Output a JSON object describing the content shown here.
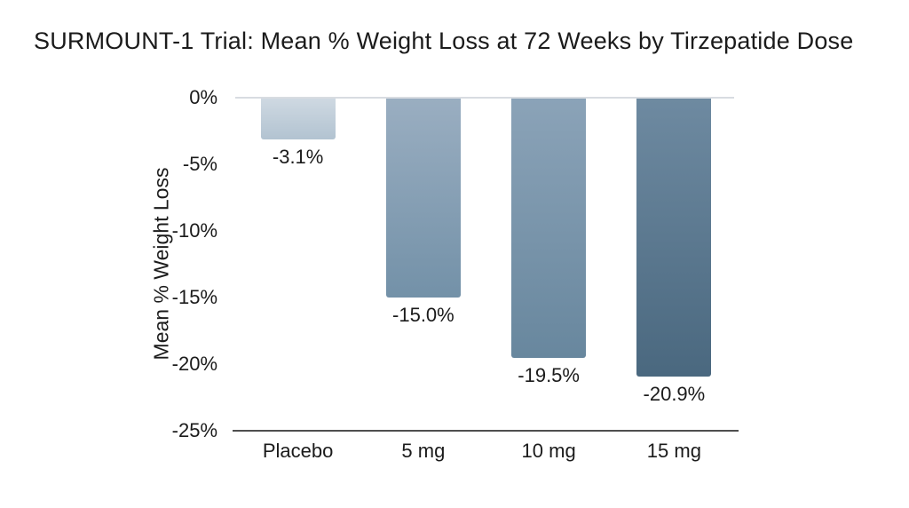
{
  "title": "SURMOUNT-1 Trial: Mean % Weight Loss at 72 Weeks by Tirzepatide Dose",
  "chart_data": {
    "type": "bar",
    "title": "SURMOUNT-1 Trial: Mean % Weight Loss at 72 Weeks by Tirzepatide Dose",
    "categories": [
      "Placebo",
      "5 mg",
      "10 mg",
      "15 mg"
    ],
    "values": [
      -3.1,
      -15.0,
      -19.5,
      -20.9
    ],
    "value_labels": [
      "-3.1%",
      "-15.0%",
      "-19.5%",
      "-20.9%"
    ],
    "xlabel": "",
    "ylabel": "Mean % Weight Loss",
    "ylim": [
      -25,
      0
    ],
    "y_ticks": [
      0,
      -5,
      -10,
      -15,
      -20,
      -25
    ],
    "y_tick_labels": [
      "0%",
      "-5%",
      "-10%",
      "-15%",
      "-20%",
      "-25%"
    ],
    "grid": "zero-line-only",
    "legend_position": "none",
    "bar_gradients": [
      {
        "top": "#cfd9e2",
        "bottom": "#b2c3d1"
      },
      {
        "top": "#9aaec1",
        "bottom": "#7391a8"
      },
      {
        "top": "#8ba3b8",
        "bottom": "#68879e"
      },
      {
        "top": "#6e8aa1",
        "bottom": "#4a687f"
      }
    ],
    "zero_line_color": "#d8dce1",
    "axis_line_color": "#4f4f4f",
    "text_color": "#1b1b1b",
    "background_color": "#ffffff"
  }
}
